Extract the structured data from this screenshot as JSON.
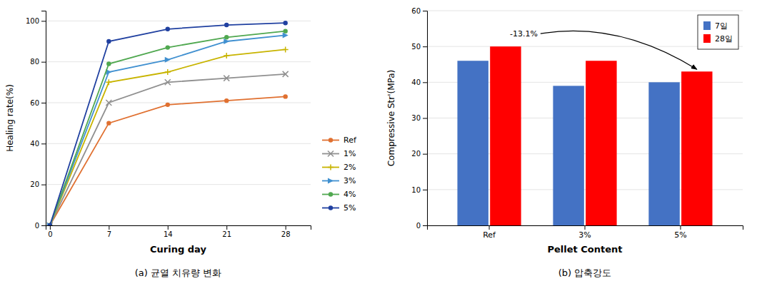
{
  "chart_data": [
    {
      "type": "line",
      "title": "(a) 균열 치유량 변화",
      "xlabel": "Curing day",
      "ylabel": "Healing rate(%)",
      "x": [
        0,
        7,
        14,
        21,
        28
      ],
      "series": [
        {
          "name": "Ref",
          "color": "#E07030",
          "marker": "circle",
          "values": [
            0,
            50,
            59,
            61,
            63
          ]
        },
        {
          "name": "1%",
          "color": "#909090",
          "marker": "x",
          "values": [
            0,
            60,
            70,
            72,
            74
          ]
        },
        {
          "name": "2%",
          "color": "#C8B400",
          "marker": "plus",
          "values": [
            0,
            70,
            75,
            83,
            86
          ]
        },
        {
          "name": "3%",
          "color": "#4090D0",
          "marker": "triangle-right",
          "values": [
            0,
            75,
            81,
            90,
            93
          ]
        },
        {
          "name": "4%",
          "color": "#50A850",
          "marker": "circle",
          "values": [
            0,
            79,
            87,
            92,
            95
          ]
        },
        {
          "name": "5%",
          "color": "#2040A0",
          "marker": "circle",
          "values": [
            0,
            90,
            96,
            98,
            99
          ]
        }
      ],
      "xlim": [
        -0.5,
        31
      ],
      "ylim": [
        0,
        105
      ],
      "xticks": [
        0,
        7,
        14,
        21,
        28
      ],
      "yticks": [
        0,
        20,
        40,
        60,
        80,
        100
      ],
      "grid": true,
      "legend": "right"
    },
    {
      "type": "bar",
      "title": "(b) 압축강도",
      "xlabel": "Pellet Content",
      "ylabel": "Compressive Str'(MPa)",
      "categories": [
        "Ref",
        "3%",
        "5%"
      ],
      "series": [
        {
          "name": "7일",
          "color": "#4472C4",
          "values": [
            46,
            39,
            40
          ]
        },
        {
          "name": "28일",
          "color": "#FF0000",
          "values": [
            50,
            46,
            43
          ]
        }
      ],
      "ylim": [
        0,
        60
      ],
      "yticks": [
        0,
        10,
        20,
        30,
        40,
        50,
        60
      ],
      "grid": true,
      "legend": "upper right",
      "annotations": [
        "-13.1%"
      ]
    }
  ]
}
